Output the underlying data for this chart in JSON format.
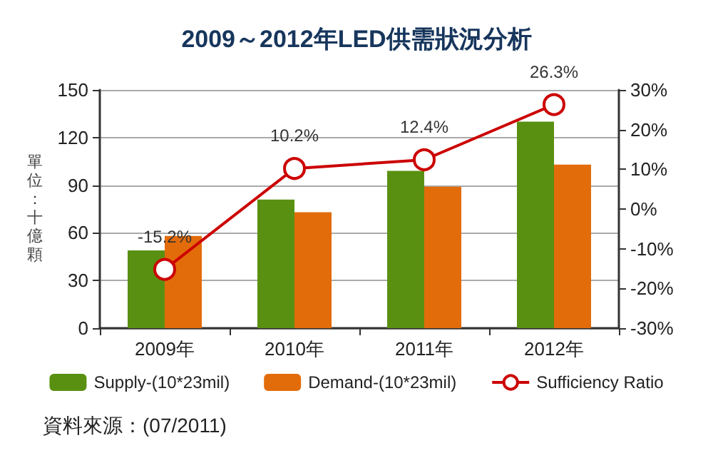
{
  "chart_data": {
    "type": "bar",
    "title": "2009～2012年LED供需狀況分析",
    "ylabel": "單位：十億顆",
    "categories": [
      "2009年",
      "2010年",
      "2011年",
      "2012年"
    ],
    "series": [
      {
        "name": "Supply-(10*23mil)",
        "color": "#5a9012",
        "values": [
          49,
          81,
          99,
          130
        ]
      },
      {
        "name": "Demand-(10*23mil)",
        "color": "#e36c0a",
        "values": [
          58,
          73,
          89,
          103
        ]
      },
      {
        "name": "Sufficiency Ratio",
        "type": "line",
        "axis": "y2",
        "color": "#cc0000",
        "values": [
          -15.2,
          10.2,
          12.4,
          26.3
        ],
        "value_labels": [
          "-15.2%",
          "10.2%",
          "12.4%",
          "26.3%"
        ],
        "marker": "circle"
      }
    ],
    "ylim": [
      0,
      150
    ],
    "yticks": [
      0,
      30,
      60,
      90,
      120,
      150
    ],
    "y2lim": [
      -30,
      30
    ],
    "y2ticks": [
      {
        "value": -30,
        "label": "-30%"
      },
      {
        "value": -20,
        "label": "-20%"
      },
      {
        "value": -10,
        "label": "-10%"
      },
      {
        "value": 0,
        "label": "0%"
      },
      {
        "value": 10,
        "label": "10%"
      },
      {
        "value": 20,
        "label": "20%"
      },
      {
        "value": 30,
        "label": "30%"
      }
    ],
    "grid": "y",
    "legend": "bottom",
    "annotations": [
      "資料來源：(07/2011)"
    ]
  }
}
